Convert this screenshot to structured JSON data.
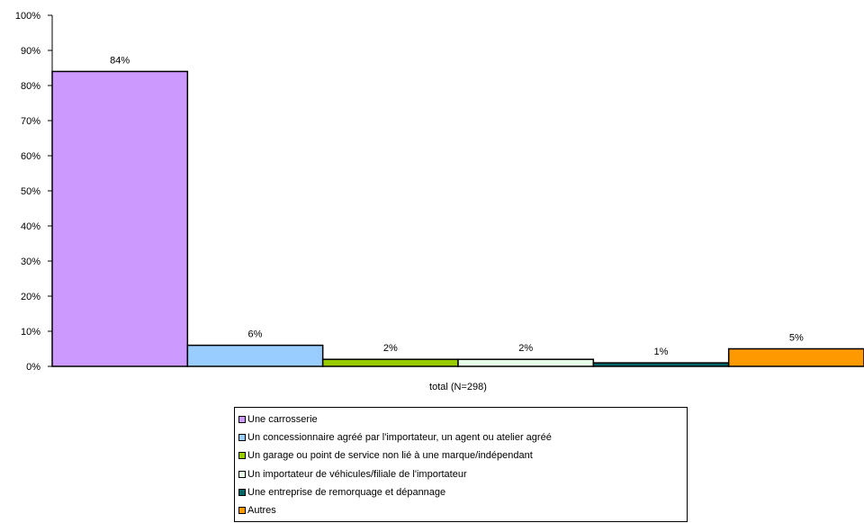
{
  "chart_data": {
    "type": "bar",
    "categories": [
      "total (N=298)"
    ],
    "xlabel": "total (N=298)",
    "ylabel": "",
    "ylim": [
      0,
      100
    ],
    "yticks": [
      "0%",
      "10%",
      "20%",
      "30%",
      "40%",
      "50%",
      "60%",
      "70%",
      "80%",
      "90%",
      "100%"
    ],
    "grid": false,
    "legend_position": "bottom",
    "series": [
      {
        "name": "Une carrosserie",
        "values": [
          84
        ],
        "label": "84%",
        "color": "#CC99FF"
      },
      {
        "name": "Un concessionnaire agréé par l'importateur, un agent ou atelier agréé",
        "values": [
          6
        ],
        "label": "6%",
        "color": "#99CCFF"
      },
      {
        "name": "Un garage ou point de service non lié à une marque/indépendant",
        "values": [
          2
        ],
        "label": "2%",
        "color": "#99CC00"
      },
      {
        "name": "Un importateur de véhicules/filiale de l'importateur",
        "values": [
          2
        ],
        "label": "2%",
        "color": "#E6FFE6"
      },
      {
        "name": "Une entreprise de remorquage et dépannage",
        "values": [
          1
        ],
        "label": "1%",
        "color": "#006666"
      },
      {
        "name": "Autres",
        "values": [
          5
        ],
        "label": "5%",
        "color": "#FF9900"
      }
    ]
  }
}
